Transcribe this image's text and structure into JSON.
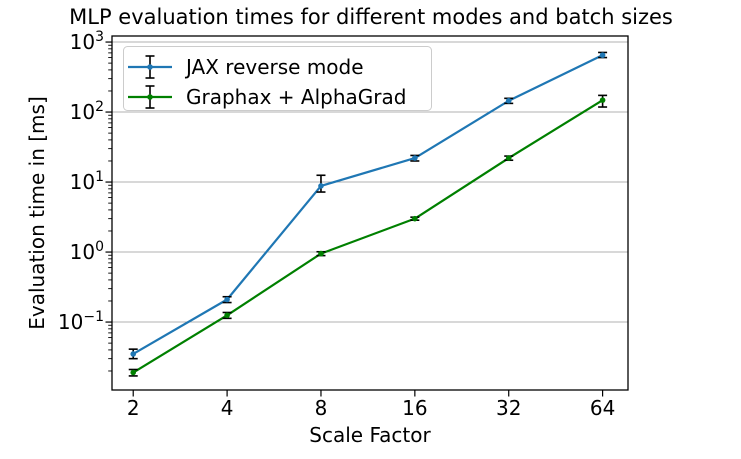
{
  "title": "MLP evaluation times for different modes and batch sizes",
  "chart_data": {
    "type": "line",
    "title": "MLP evaluation times for different modes and batch sizes",
    "xlabel": "Scale Factor",
    "ylabel": "Evaluation time in [ms]",
    "x_axis": {
      "scale": "log2",
      "ticks": [
        2,
        4,
        8,
        16,
        32,
        64
      ],
      "lim": [
        1.71,
        77.2
      ]
    },
    "y_axis": {
      "scale": "log10",
      "tick_exponents": [
        3,
        2,
        1,
        0,
        -1
      ],
      "lim": [
        0.0107,
        1220
      ]
    },
    "grid": {
      "horizontal_major": true,
      "color": "#b0b0b0"
    },
    "frame_color": "#000000",
    "error_bar_color": "#000000",
    "legend": {
      "position": "upper left",
      "border_color": "#cccccc",
      "background": "#ffffff"
    },
    "x": [
      2,
      4,
      8,
      16,
      32,
      64
    ],
    "series": [
      {
        "name": "JAX reverse mode",
        "color": "#1f77b4",
        "values": [
          0.035,
          0.21,
          8.8,
          22,
          145,
          650
        ],
        "yerr_lo": [
          0.005,
          0.02,
          1.6,
          2,
          12,
          50
        ],
        "yerr_hi": [
          0.006,
          0.02,
          3.7,
          2,
          12,
          60
        ]
      },
      {
        "name": "Graphax + AlphaGrad",
        "color": "#008000",
        "values": [
          0.019,
          0.125,
          0.95,
          3.0,
          22,
          148
        ],
        "yerr_lo": [
          0.002,
          0.012,
          0.06,
          0.15,
          1.5,
          30
        ],
        "yerr_hi": [
          0.002,
          0.012,
          0.06,
          0.15,
          1.5,
          25
        ]
      }
    ]
  }
}
